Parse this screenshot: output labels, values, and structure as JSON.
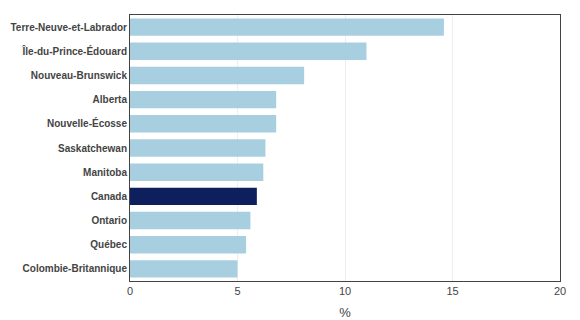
{
  "chart_data": {
    "type": "bar",
    "orientation": "horizontal",
    "categories": [
      "Colombie-Britannique",
      "Québec",
      "Ontario",
      "Canada",
      "Manitoba",
      "Saskatchewan",
      "Nouvelle-Écosse",
      "Alberta",
      "Nouveau-Brunswick",
      "Île-du-Prince-Édouard",
      "Terre-Neuve-et-Labrador"
    ],
    "values": [
      5.0,
      5.4,
      5.6,
      5.9,
      6.2,
      6.3,
      6.8,
      6.8,
      8.1,
      11.0,
      14.6
    ],
    "colors": [
      "#a8cfe0",
      "#a8cfe0",
      "#a8cfe0",
      "#0d1f5c",
      "#a8cfe0",
      "#a8cfe0",
      "#a8cfe0",
      "#a8cfe0",
      "#a8cfe0",
      "#a8cfe0",
      "#a8cfe0"
    ],
    "xlabel": "%",
    "xlim": [
      0,
      20
    ],
    "xticks": [
      0,
      5,
      10,
      15,
      20
    ],
    "grid": true
  }
}
